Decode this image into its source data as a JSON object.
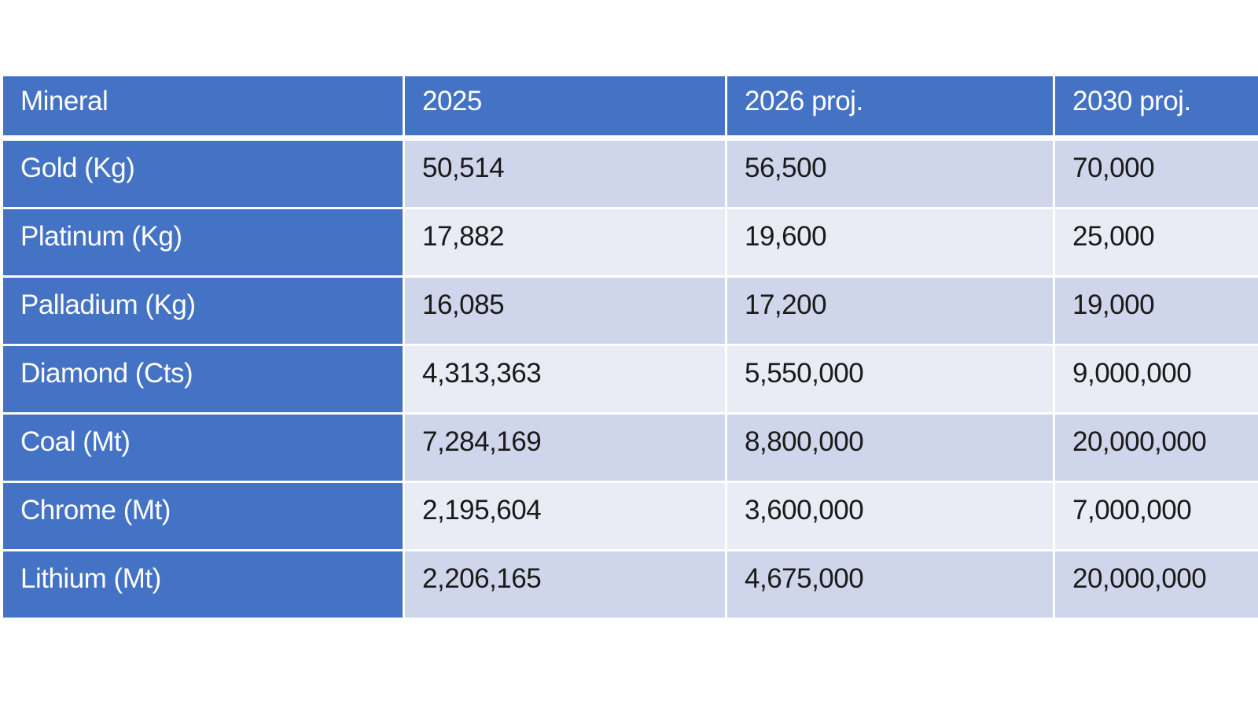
{
  "table": {
    "headers": [
      "Mineral",
      "2025",
      "2026 proj.",
      "2030 proj."
    ],
    "rows": [
      [
        "Gold (Kg)",
        "50,514",
        "56,500",
        "70,000"
      ],
      [
        "Platinum (Kg)",
        "17,882",
        "19,600",
        "25,000"
      ],
      [
        "Palladium (Kg)",
        "16,085",
        "17,200",
        "19,000"
      ],
      [
        "Diamond (Cts)",
        "4,313,363",
        "5,550,000",
        "9,000,000"
      ],
      [
        "Coal (Mt)",
        "7,284,169",
        "8,800,000",
        "20,000,000"
      ],
      [
        "Chrome (Mt)",
        "2,195,604",
        "3,600,000",
        "7,000,000"
      ],
      [
        "Lithium (Mt)",
        "2,206,165",
        "4,675,000",
        "20,000,000"
      ]
    ]
  },
  "colors": {
    "header_bg": "#4472c4",
    "header_text": "#ffffff",
    "row_band_dark": "#cfd5ea",
    "row_band_light": "#e9ebf5"
  }
}
